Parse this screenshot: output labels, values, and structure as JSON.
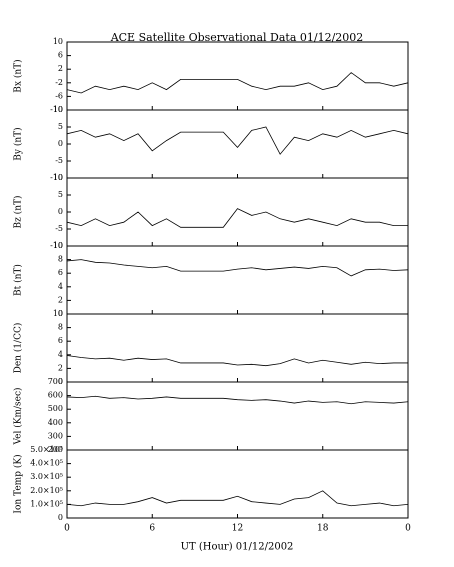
{
  "chart_data": [
    {
      "type": "line",
      "title": "ACE Satellite Observational Data   01/12/2002",
      "ylabel": "Bx (nT)",
      "xlim": [
        0,
        24
      ],
      "x": [
        0,
        1,
        2,
        3,
        4,
        5,
        6,
        7,
        8,
        9,
        10,
        11,
        12,
        13,
        14,
        15,
        16,
        17,
        18,
        19,
        20,
        21,
        22,
        23,
        24
      ],
      "ylim": [
        -10,
        10
      ],
      "yticks": [
        -10,
        -6,
        -2,
        2,
        6,
        10
      ],
      "series": [
        {
          "color": "#000000",
          "values": [
            -4,
            -5,
            -3,
            -4,
            -3,
            -4,
            -2,
            -4,
            -1,
            -1,
            -1,
            -1,
            -1,
            -3,
            -4,
            -3,
            -3,
            -2,
            -4,
            -3,
            1,
            -2,
            -2,
            -3,
            -2
          ]
        }
      ]
    },
    {
      "type": "line",
      "ylabel": "By (nT)",
      "xlim": [
        0,
        24
      ],
      "x": [
        0,
        1,
        2,
        3,
        4,
        5,
        6,
        7,
        8,
        9,
        10,
        11,
        12,
        13,
        14,
        15,
        16,
        17,
        18,
        19,
        20,
        21,
        22,
        23,
        24
      ],
      "ylim": [
        -10,
        10
      ],
      "yticks": [
        -10,
        -5,
        0,
        5,
        10
      ],
      "series": [
        {
          "color": "#000000",
          "values": [
            3,
            4,
            2,
            3,
            1,
            3,
            -2,
            1,
            3.5,
            3.5,
            3.5,
            3.5,
            -1,
            4,
            5,
            -3,
            2,
            1,
            3,
            2,
            4,
            2,
            3,
            4,
            3
          ]
        }
      ]
    },
    {
      "type": "line",
      "ylabel": "Bz (nT)",
      "xlim": [
        0,
        24
      ],
      "x": [
        0,
        1,
        2,
        3,
        4,
        5,
        6,
        7,
        8,
        9,
        10,
        11,
        12,
        13,
        14,
        15,
        16,
        17,
        18,
        19,
        20,
        21,
        22,
        23,
        24
      ],
      "ylim": [
        -10,
        10
      ],
      "yticks": [
        -10,
        -5,
        0,
        5,
        10
      ],
      "series": [
        {
          "color": "#000000",
          "values": [
            -3,
            -4,
            -2,
            -4,
            -3,
            0,
            -4,
            -2,
            -4.5,
            -4.5,
            -4.5,
            -4.5,
            1,
            -1,
            0,
            -2,
            -3,
            -2,
            -3,
            -4,
            -2,
            -3,
            -3,
            -4,
            -4
          ]
        }
      ]
    },
    {
      "type": "line",
      "ylabel": "Bt (nT)",
      "xlim": [
        0,
        24
      ],
      "x": [
        0,
        1,
        2,
        3,
        4,
        5,
        6,
        7,
        8,
        9,
        10,
        11,
        12,
        13,
        14,
        15,
        16,
        17,
        18,
        19,
        20,
        21,
        22,
        23,
        24
      ],
      "ylim": [
        0,
        10
      ],
      "yticks": [
        0,
        2,
        4,
        6,
        8,
        10
      ],
      "series": [
        {
          "color": "#000000",
          "values": [
            7.8,
            8,
            7.6,
            7.5,
            7.2,
            7,
            6.8,
            7,
            6.3,
            6.3,
            6.3,
            6.3,
            6.6,
            6.8,
            6.5,
            6.7,
            6.9,
            6.7,
            7,
            6.8,
            5.6,
            6.5,
            6.6,
            6.4,
            6.5
          ]
        }
      ]
    },
    {
      "type": "line",
      "ylabel": "Den (1/CC)",
      "xlim": [
        0,
        24
      ],
      "x": [
        0,
        1,
        2,
        3,
        4,
        5,
        6,
        7,
        8,
        9,
        10,
        11,
        12,
        13,
        14,
        15,
        16,
        17,
        18,
        19,
        20,
        21,
        22,
        23,
        24
      ],
      "ylim": [
        0,
        10
      ],
      "yticks": [
        0,
        2,
        4,
        6,
        8,
        10
      ],
      "series": [
        {
          "color": "#000000",
          "values": [
            3.9,
            3.6,
            3.4,
            3.5,
            3.2,
            3.5,
            3.3,
            3.4,
            2.8,
            2.8,
            2.8,
            2.8,
            2.5,
            2.6,
            2.4,
            2.7,
            3.4,
            2.8,
            3.2,
            2.9,
            2.6,
            2.9,
            2.7,
            2.8,
            2.8
          ]
        }
      ]
    },
    {
      "type": "line",
      "ylabel": "Vel (Km/sec)",
      "xlim": [
        0,
        24
      ],
      "x": [
        0,
        1,
        2,
        3,
        4,
        5,
        6,
        7,
        8,
        9,
        10,
        11,
        12,
        13,
        14,
        15,
        16,
        17,
        18,
        19,
        20,
        21,
        22,
        23,
        24
      ],
      "ylim": [
        200,
        700
      ],
      "yticks": [
        200,
        300,
        400,
        500,
        600,
        700
      ],
      "series": [
        {
          "color": "#000000",
          "values": [
            590,
            585,
            595,
            580,
            585,
            575,
            580,
            590,
            580,
            580,
            580,
            580,
            570,
            565,
            570,
            560,
            545,
            560,
            550,
            555,
            540,
            555,
            550,
            545,
            555
          ]
        }
      ]
    },
    {
      "type": "line",
      "ylabel": "Ion Temp (K)",
      "xlabel": "UT (Hour)   01/12/2002",
      "xlim": [
        0,
        24
      ],
      "x": [
        0,
        1,
        2,
        3,
        4,
        5,
        6,
        7,
        8,
        9,
        10,
        11,
        12,
        13,
        14,
        15,
        16,
        17,
        18,
        19,
        20,
        21,
        22,
        23,
        24
      ],
      "xticks": [
        0,
        6,
        12,
        18,
        {
          "value": 24,
          "label": "0"
        }
      ],
      "ylim": [
        0,
        500000
      ],
      "yticks": [
        0,
        {
          "value": 100000,
          "label": "1.0×10⁵"
        },
        {
          "value": 200000,
          "label": "2.0×10⁵"
        },
        {
          "value": 300000,
          "label": "3.0×10⁵"
        },
        {
          "value": 400000,
          "label": "4.0×10⁵"
        },
        {
          "value": 500000,
          "label": "5.0×10⁵"
        }
      ],
      "series": [
        {
          "color": "#000000",
          "values": [
            100000,
            90000,
            110000,
            100000,
            100000,
            120000,
            150000,
            110000,
            130000,
            130000,
            130000,
            130000,
            160000,
            120000,
            110000,
            100000,
            140000,
            150000,
            200000,
            110000,
            90000,
            100000,
            110000,
            90000,
            100000
          ]
        }
      ]
    }
  ]
}
